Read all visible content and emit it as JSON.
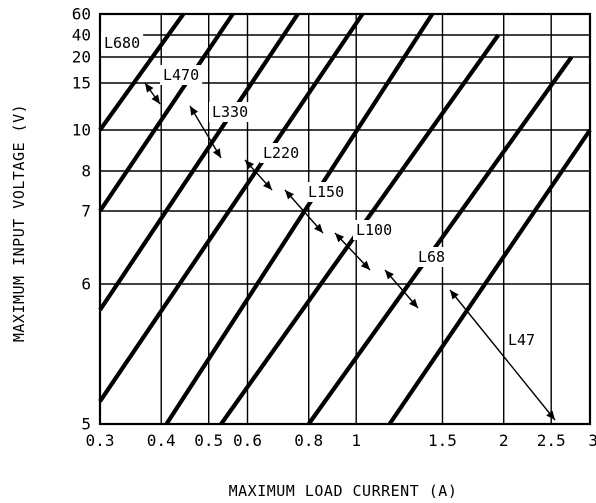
{
  "chart_data": {
    "type": "line",
    "xlabel": "MAXIMUM LOAD CURRENT (A)",
    "ylabel": "MAXIMUM INPUT VOLTAGE (V)",
    "xscale": "log",
    "yscale": "custom",
    "xlim": [
      0.3,
      3
    ],
    "ylim": [
      5,
      60
    ],
    "grid": true,
    "x_ticks": [
      {
        "value": 0.3,
        "label": "0.3"
      },
      {
        "value": 0.4,
        "label": "0.4"
      },
      {
        "value": 0.5,
        "label": "0.5"
      },
      {
        "value": 0.6,
        "label": "0.6"
      },
      {
        "value": 0.8,
        "label": "0.8"
      },
      {
        "value": 1,
        "label": "1"
      },
      {
        "value": 1.5,
        "label": "1.5"
      },
      {
        "value": 2,
        "label": "2"
      },
      {
        "value": 2.5,
        "label": "2.5"
      },
      {
        "value": 3,
        "label": "3"
      }
    ],
    "y_ticks": [
      {
        "value": 5,
        "label": "5"
      },
      {
        "value": 6,
        "label": "6"
      },
      {
        "value": 7,
        "label": "7"
      },
      {
        "value": 8,
        "label": "8"
      },
      {
        "value": 10,
        "label": "10"
      },
      {
        "value": 15,
        "label": "15"
      },
      {
        "value": 20,
        "label": "20"
      },
      {
        "value": 40,
        "label": "40"
      },
      {
        "value": 60,
        "label": "60"
      }
    ],
    "series": [
      {
        "name": "L680",
        "x": [
          0.3,
          0.444
        ],
        "y": [
          10,
          60
        ]
      },
      {
        "name": "L470",
        "x": [
          0.3,
          0.56
        ],
        "y": [
          7,
          60
        ]
      },
      {
        "name": "L330",
        "x": [
          0.3,
          0.76
        ],
        "y": [
          5.8,
          60
        ]
      },
      {
        "name": "L220",
        "x": [
          0.3,
          1.03
        ],
        "y": [
          5.15,
          60
        ]
      },
      {
        "name": "L150",
        "x": [
          0.41,
          1.43
        ],
        "y": [
          5,
          60
        ]
      },
      {
        "name": "L100",
        "x": [
          0.53,
          1.95
        ],
        "y": [
          5,
          40
        ]
      },
      {
        "name": "L68",
        "x": [
          0.8,
          2.75
        ],
        "y": [
          5,
          20
        ]
      },
      {
        "name": "L47",
        "x": [
          1.17,
          3.0
        ],
        "y": [
          5,
          10
        ]
      }
    ],
    "annotations": [
      {
        "text": "L680"
      },
      {
        "text": "L470"
      },
      {
        "text": "L330"
      },
      {
        "text": "L220"
      },
      {
        "text": "L150"
      },
      {
        "text": "L100"
      },
      {
        "text": "L68"
      },
      {
        "text": "L47"
      }
    ]
  }
}
